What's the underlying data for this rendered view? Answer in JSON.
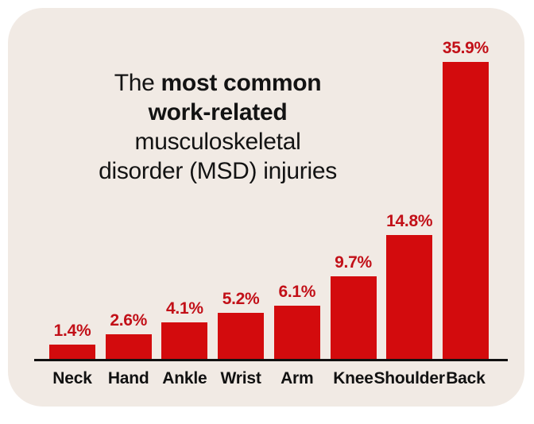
{
  "title": {
    "line1_light": "The ",
    "line1_bold": "most common",
    "line2_bold": "work-related",
    "line3": "musculoskeletal",
    "line4": "disorder (MSD) injuries"
  },
  "chart_data": {
    "type": "bar",
    "title": "The most common work-related musculoskeletal disorder (MSD) injuries",
    "categories": [
      "Neck",
      "Hand",
      "Ankle",
      "Wrist",
      "Arm",
      "Knee",
      "Shoulder",
      "Back"
    ],
    "values": [
      1.4,
      2.6,
      4.1,
      5.2,
      6.1,
      9.7,
      14.8,
      35.9
    ],
    "value_labels": [
      "1.4%",
      "2.6%",
      "4.1%",
      "5.2%",
      "6.1%",
      "9.7%",
      "14.8%",
      "35.9%"
    ],
    "xlabel": "",
    "ylabel": "",
    "ylim": [
      0,
      36
    ],
    "grid": false,
    "legend": false,
    "bar_color": "#d30b0d",
    "value_label_color": "#c21018",
    "axis_color": "#111111"
  },
  "colors": {
    "page_bg": "#ffffff",
    "card_bg": "#f1eae4",
    "title_text": "#131313"
  }
}
